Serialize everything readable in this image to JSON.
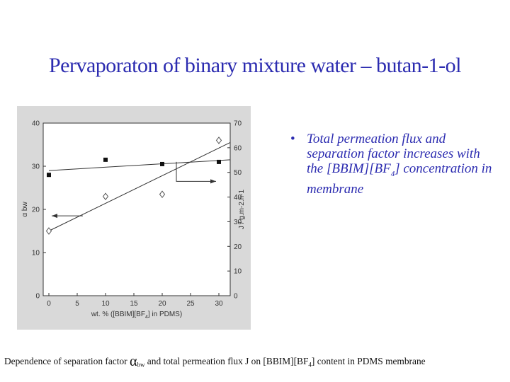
{
  "slide": {
    "title": "Pervaporaton of binary mixture water – butan-1-ol",
    "bullet_parts": [
      "Total permeation flux and separation factor increases with the [BBIM][BF",
      "4",
      "] concentration in membrane"
    ],
    "caption_parts": [
      "Dependence of separation factor ",
      "α",
      "bw",
      " and total permeation flux J on [BBIM][BF",
      "4",
      "] content in PDMS membrane"
    ],
    "colors": {
      "title": "#2b2bb0",
      "frame": "#d9d9d9"
    }
  },
  "chart_data": {
    "type": "scatter",
    "xlabel_parts": [
      "wt. % ([BBIM][BF",
      "4",
      "] in PDMS)"
    ],
    "ylabel": "α bw",
    "y2label": "J / g.m-2.h-1",
    "xlim": [
      -1,
      32
    ],
    "ylim": [
      0,
      40
    ],
    "y2lim": [
      0,
      70
    ],
    "xticks": [
      0,
      5,
      10,
      15,
      20,
      25,
      30
    ],
    "yticks": [
      0,
      10,
      20,
      30,
      40
    ],
    "y2ticks": [
      0,
      10,
      20,
      30,
      40,
      50,
      60,
      70
    ],
    "series": [
      {
        "marker": "square",
        "axis": "left",
        "x": [
          0,
          10,
          20,
          30
        ],
        "y": [
          28,
          31.5,
          30.5,
          31
        ],
        "trend": [
          [
            0,
            29
          ],
          [
            32,
            31.5
          ]
        ]
      },
      {
        "marker": "diamond",
        "axis": "left",
        "x": [
          0,
          10,
          20,
          30
        ],
        "y": [
          15,
          23,
          23.5,
          36
        ],
        "trend": [
          [
            0,
            15
          ],
          [
            32,
            35.5
          ]
        ]
      }
    ],
    "annotations": [
      {
        "type": "arrow",
        "direction": "left",
        "from": [
          6,
          18.5
        ],
        "to": [
          0.5,
          18.5
        ]
      },
      {
        "type": "arrow",
        "direction": "right",
        "from": [
          22.5,
          26.5
        ],
        "to": [
          29.5,
          26.5
        ],
        "rise_to": 31
      }
    ]
  }
}
